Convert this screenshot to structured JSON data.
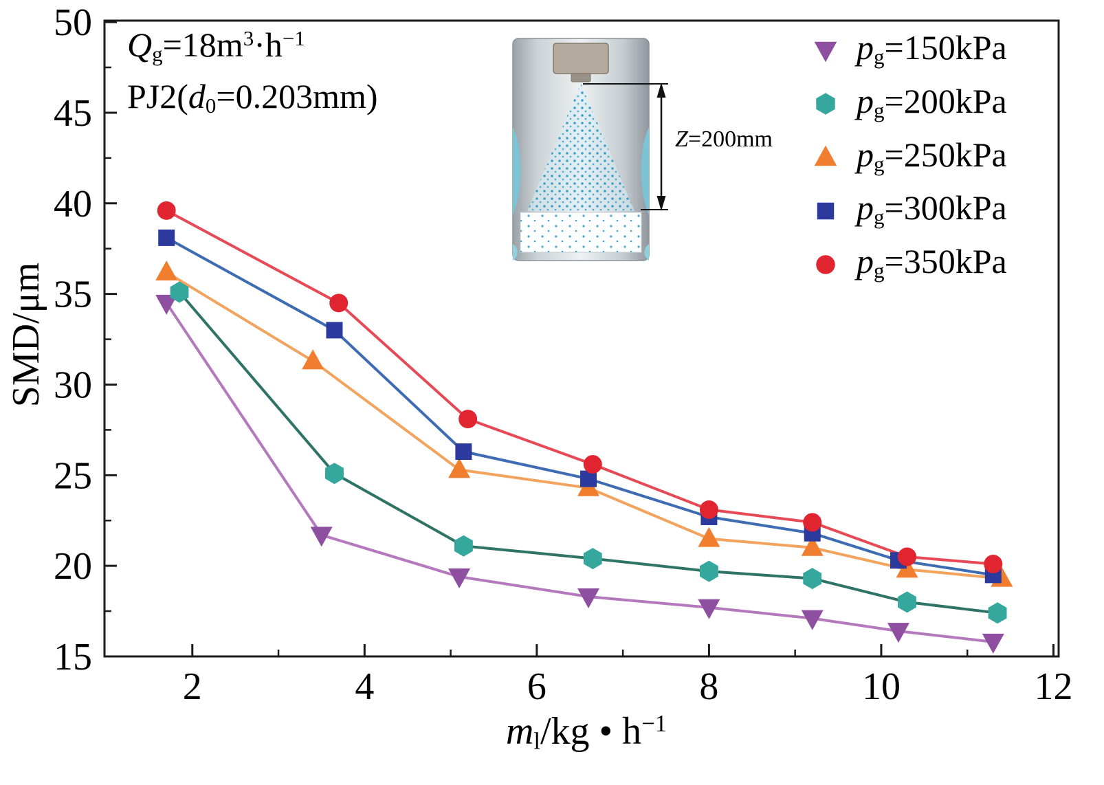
{
  "chart_data": {
    "type": "line",
    "title": "",
    "ylabel": "SMD/μm",
    "xlabel_segments": [
      {
        "text": "m",
        "style": "italic"
      },
      {
        "text": "l",
        "style": "sub"
      },
      {
        "text": "/kg",
        "style": ""
      },
      {
        "text": " • ",
        "style": ""
      },
      {
        "text": "h",
        "style": ""
      },
      {
        "text": "−1",
        "style": "sup"
      }
    ],
    "xlim": [
      0.98,
      12.06
    ],
    "ylim": [
      15,
      50.08
    ],
    "xticks": [
      2,
      4,
      6,
      8,
      10,
      12
    ],
    "yticks": [
      15,
      20,
      25,
      30,
      35,
      40,
      45,
      50
    ],
    "x_minor_ticks": [
      3,
      5,
      7,
      9,
      11
    ],
    "y_minor_ticks": [
      17.5,
      22.5,
      27.5,
      32.5,
      37.5,
      42.5,
      47.5
    ],
    "grid": false,
    "legend_position": "top-right",
    "annotations": {
      "line1_segments": [
        {
          "text": "Q",
          "style": "italic"
        },
        {
          "text": "g",
          "style": "sub"
        },
        {
          "text": "=18m",
          "style": ""
        },
        {
          "text": "3",
          "style": "sup"
        },
        {
          "text": "·h",
          "style": ""
        },
        {
          "text": "−1",
          "style": "sup"
        }
      ],
      "line2_segments": [
        {
          "text": "PJ2(",
          "style": ""
        },
        {
          "text": "d",
          "style": "italic"
        },
        {
          "text": "0",
          "style": "sub"
        },
        {
          "text": "=0.203mm)",
          "style": ""
        }
      ]
    },
    "inset": {
      "label_segments": [
        {
          "text": "Z",
          "style": "italic"
        },
        {
          "text": "=200mm",
          "style": ""
        }
      ]
    },
    "series": [
      {
        "id": "pg-150kPa",
        "label_segments": [
          {
            "text": "p",
            "style": "italic"
          },
          {
            "text": "g",
            "style": "sub"
          },
          {
            "text": "=150kPa",
            "style": ""
          }
        ],
        "marker": "triangle-down",
        "marker_color": "#8e4fa0",
        "line_color": "#b479bd",
        "x": [
          1.7,
          3.5,
          5.1,
          6.6,
          8.0,
          9.2,
          10.2,
          11.3
        ],
        "y": [
          34.5,
          21.7,
          19.4,
          18.3,
          17.7,
          17.1,
          16.4,
          15.8
        ]
      },
      {
        "id": "pg-200kPa",
        "label_segments": [
          {
            "text": "p",
            "style": "italic"
          },
          {
            "text": "g",
            "style": "sub"
          },
          {
            "text": "=200kPa",
            "style": ""
          }
        ],
        "marker": "hexagon",
        "marker_color": "#35a79c",
        "line_color": "#2e7365",
        "x": [
          1.85,
          3.65,
          5.15,
          6.65,
          8.0,
          9.2,
          10.3,
          11.35
        ],
        "y": [
          35.1,
          25.1,
          21.1,
          20.4,
          19.7,
          19.3,
          18.0,
          17.4
        ]
      },
      {
        "id": "pg-250kPa",
        "label_segments": [
          {
            "text": "p",
            "style": "italic"
          },
          {
            "text": "g",
            "style": "sub"
          },
          {
            "text": "=250kPa",
            "style": ""
          }
        ],
        "marker": "triangle-up",
        "marker_color": "#f07e2e",
        "line_color": "#f2a45e",
        "x": [
          1.7,
          3.4,
          5.1,
          6.6,
          8.0,
          9.2,
          10.3,
          11.4
        ],
        "y": [
          36.2,
          31.3,
          25.3,
          24.3,
          21.5,
          21.0,
          19.8,
          19.3
        ]
      },
      {
        "id": "pg-300kPa",
        "label_segments": [
          {
            "text": "p",
            "style": "italic"
          },
          {
            "text": "g",
            "style": "sub"
          },
          {
            "text": "=300kPa",
            "style": ""
          }
        ],
        "marker": "square",
        "marker_color": "#2c3a9d",
        "line_color": "#3e6cb2",
        "x": [
          1.7,
          3.65,
          5.15,
          6.6,
          8.0,
          9.2,
          10.2,
          11.3
        ],
        "y": [
          38.1,
          33.0,
          26.3,
          24.8,
          22.7,
          21.8,
          20.3,
          19.5
        ]
      },
      {
        "id": "pg-350kPa",
        "label_segments": [
          {
            "text": "p",
            "style": "italic"
          },
          {
            "text": "g",
            "style": "sub"
          },
          {
            "text": "=350kPa",
            "style": ""
          }
        ],
        "marker": "circle",
        "marker_color": "#e02531",
        "line_color": "#e64a56",
        "x": [
          1.7,
          3.7,
          5.2,
          6.65,
          8.0,
          9.2,
          10.3,
          11.3
        ],
        "y": [
          39.6,
          34.5,
          28.1,
          25.6,
          23.1,
          22.4,
          20.5,
          20.1
        ]
      }
    ]
  }
}
